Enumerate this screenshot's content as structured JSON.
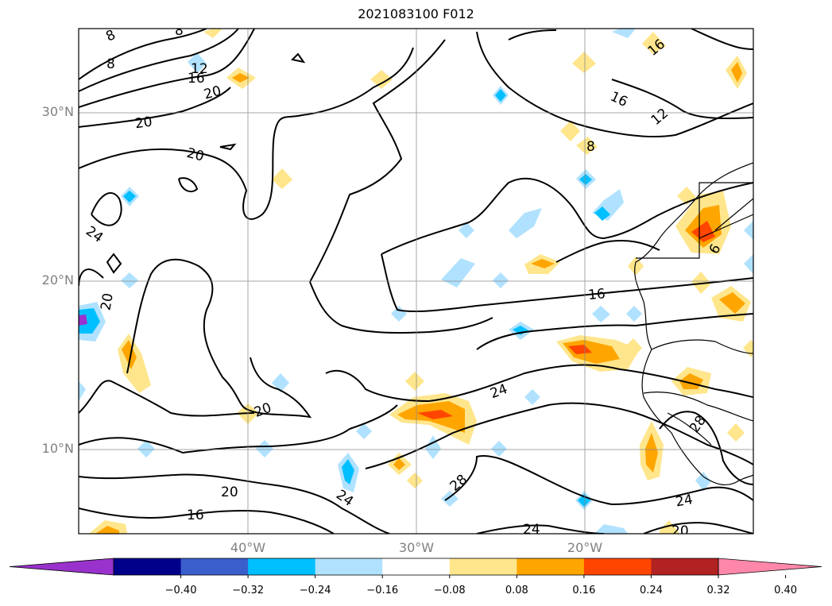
{
  "title": "2021083100 F012",
  "map": {
    "lat_labels": [
      "30°N",
      "20°N",
      "10°N"
    ],
    "lon_labels": [
      "40°W",
      "30°W",
      "20°W"
    ],
    "contour_labels": [
      "8",
      "8",
      "8",
      "12",
      "16",
      "20",
      "20",
      "20",
      "24",
      "20",
      "20",
      "20",
      "16",
      "24",
      "20",
      "16",
      "24",
      "28",
      "24",
      "24",
      "16",
      "12",
      "16",
      "16",
      "8",
      "28",
      "24",
      "20",
      "6"
    ],
    "colors": {
      "contour": "#000000",
      "grid": "#888888",
      "coast": "#000000"
    }
  },
  "colorbar": {
    "colors": [
      "#9932cc",
      "#00008b",
      "#3a5fcd",
      "#00bfff",
      "#b0e2ff",
      "#ffffff",
      "#ffe68c",
      "#ffa500",
      "#ff4500",
      "#b22222",
      "#ff88aa"
    ],
    "tick_labels": [
      "−0.40",
      "−0.32",
      "−0.24",
      "−0.16",
      "−0.08",
      "0.08",
      "0.16",
      "0.24",
      "0.32",
      "0.40"
    ]
  }
}
